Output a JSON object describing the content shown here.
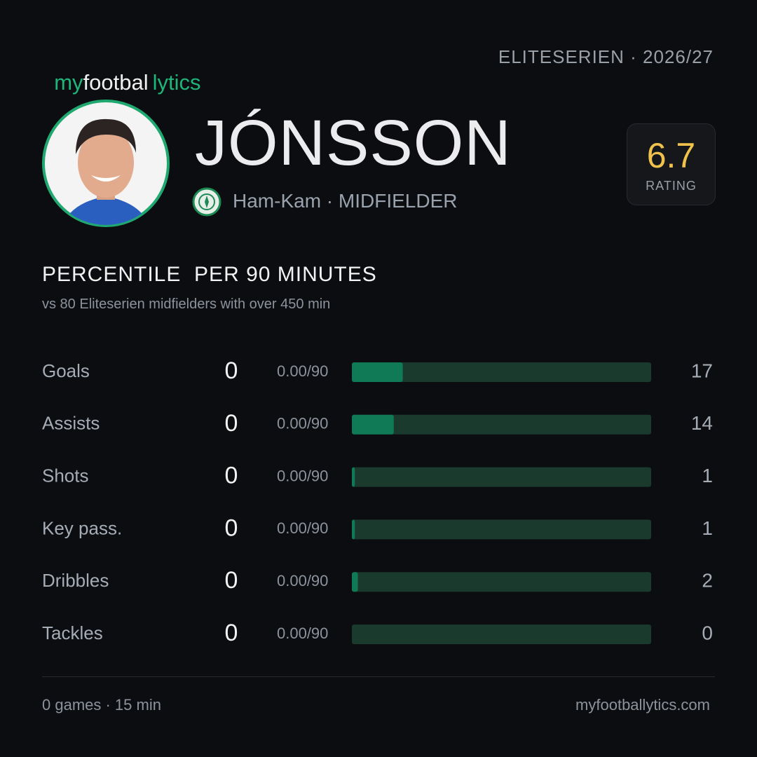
{
  "brand": {
    "my": "my",
    "football": "footbal",
    "lytics": "lytics"
  },
  "league_season": "ELITESERIEN · 2026/27",
  "player": {
    "name": "JÓNSSON",
    "team_position": "Ham-Kam · MIDFIELDER",
    "rating": "6.7",
    "rating_label": "RATING"
  },
  "section": {
    "title": "PERCENTILE  PER 90 MINUTES",
    "subtitle": "vs 80 Eliteserien midfielders with over 450 min"
  },
  "stats": {
    "xlim": [
      0,
      100
    ],
    "rows": [
      {
        "label": "Goals",
        "value": "0",
        "per90": "0.00/90",
        "percentile": 17
      },
      {
        "label": "Assists",
        "value": "0",
        "per90": "0.00/90",
        "percentile": 14
      },
      {
        "label": "Shots",
        "value": "0",
        "per90": "0.00/90",
        "percentile": 1
      },
      {
        "label": "Key pass.",
        "value": "0",
        "per90": "0.00/90",
        "percentile": 1
      },
      {
        "label": "Dribbles",
        "value": "0",
        "per90": "0.00/90",
        "percentile": 2
      },
      {
        "label": "Tackles",
        "value": "0",
        "per90": "0.00/90",
        "percentile": 0
      }
    ]
  },
  "footer": {
    "left": "0 games · 15 min",
    "right": "myfootballytics.com"
  }
}
